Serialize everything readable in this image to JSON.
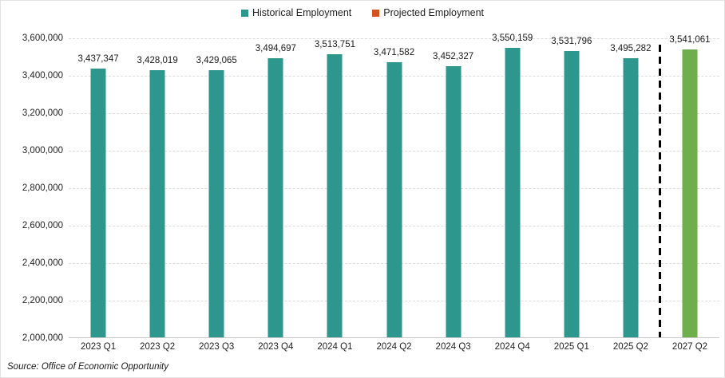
{
  "legend": {
    "items": [
      {
        "label": "Historical Employment",
        "color": "#2e978d"
      },
      {
        "label": "Projected Employment",
        "color": "#d6511e"
      }
    ]
  },
  "source": "Source: Office of Economic Opportunity",
  "colors": {
    "historical_bar": "#2e978d",
    "projected_bar": "#6fae4c",
    "separator_line": "#000000",
    "gridline": "#dcdcdc"
  },
  "chart_data": {
    "type": "bar",
    "title": "",
    "xlabel": "",
    "ylabel": "",
    "categories": [
      "2023 Q1",
      "2023 Q2",
      "2023 Q3",
      "2023 Q4",
      "2024 Q1",
      "2024 Q2",
      "2024 Q3",
      "2024 Q4",
      "2025 Q1",
      "2025 Q2",
      "2027 Q2"
    ],
    "series": [
      {
        "name": "Historical Employment",
        "values": [
          3437347,
          3428019,
          3429065,
          3494697,
          3513751,
          3471582,
          3452327,
          3550159,
          3531796,
          3495282,
          null
        ]
      },
      {
        "name": "Projected Employment",
        "values": [
          null,
          null,
          null,
          null,
          null,
          null,
          null,
          null,
          null,
          null,
          3541061
        ]
      }
    ],
    "data_labels": [
      3437347,
      3428019,
      3429065,
      3494697,
      3513751,
      3471582,
      3452327,
      3550159,
      3531796,
      3495282,
      3541061
    ],
    "ylim": [
      2000000,
      3600000
    ],
    "ytick_interval": 200000,
    "ytick_labels": [
      "2,000,000",
      "2,200,000",
      "2,400,000",
      "2,600,000",
      "2,800,000",
      "3,000,000",
      "3,200,000",
      "3,400,000",
      "3,600,000"
    ],
    "grid": true,
    "legend_position": "top",
    "annotations": [
      "dashed vertical separator between 2025 Q2 and 2027 Q2"
    ]
  }
}
